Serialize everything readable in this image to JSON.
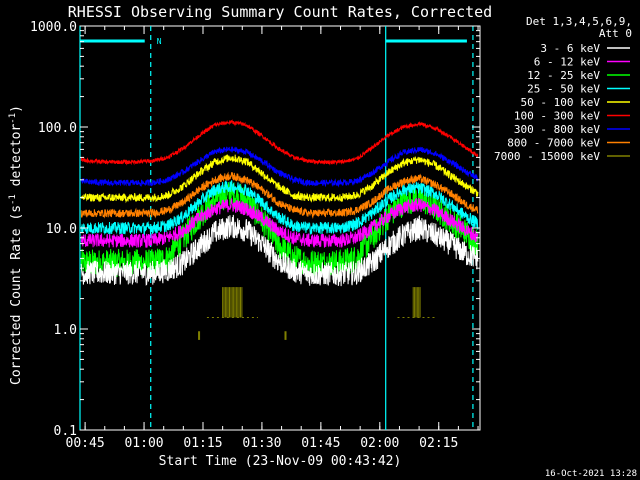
{
  "chart_data": {
    "type": "line",
    "title": "RHESSI Observing Summary Count Rates, Corrected",
    "xlabel": "Start Time (23-Nov-09 00:43:42)",
    "ylabel_main": "Corrected Count Rate (s",
    "ylabel_sup1": "-1",
    "ylabel_mid": " detector",
    "ylabel_sup2": "-1",
    "ylabel_end": ")",
    "ylim": [
      0.1,
      1000
    ],
    "yscale": "log",
    "y_ticks": [
      {
        "v": 0.1,
        "label": "0.1"
      },
      {
        "v": 1,
        "label": "1.0"
      },
      {
        "v": 10,
        "label": "10.0"
      },
      {
        "v": 100,
        "label": "100.0"
      },
      {
        "v": 1000,
        "label": "1000.0"
      }
    ],
    "xlim_minutes": [
      43.7,
      145.5
    ],
    "x_ticks": [
      {
        "m": 45,
        "label": "00:45"
      },
      {
        "m": 60,
        "label": "01:00"
      },
      {
        "m": 75,
        "label": "01:15"
      },
      {
        "m": 90,
        "label": "01:30"
      },
      {
        "m": 105,
        "label": "01:45"
      },
      {
        "m": 120,
        "label": "02:00"
      },
      {
        "m": 135,
        "label": "02:15"
      }
    ],
    "legend_header": [
      "Det 1,3,4,5,6,9,",
      "Att 0"
    ],
    "legend_position": "right",
    "night_intervals_minutes": [
      [
        43.7,
        61.7
      ],
      [
        121.5,
        143.7
      ]
    ],
    "night_label": "N",
    "bg_color": "#000000",
    "series": [
      {
        "name": "3 - 6 keV",
        "color": "#ffffff",
        "x": [
          44,
          50,
          56,
          62,
          66,
          70,
          74,
          78,
          82,
          86,
          90,
          94,
          98,
          102,
          106,
          110,
          114,
          118,
          122,
          126,
          130,
          134,
          138,
          142,
          145
        ],
        "y": [
          3.6,
          3.6,
          3.6,
          3.6,
          3.8,
          4.5,
          6.5,
          9.0,
          10.5,
          9.5,
          7.0,
          4.8,
          3.8,
          3.5,
          3.5,
          3.5,
          3.6,
          4.5,
          6.5,
          8.5,
          10.0,
          8.5,
          7.0,
          5.5,
          5.0
        ]
      },
      {
        "name": "6 - 12 keV",
        "color": "#ff00ff",
        "x": [
          44,
          50,
          56,
          62,
          66,
          70,
          74,
          78,
          82,
          86,
          90,
          94,
          98,
          102,
          106,
          110,
          114,
          118,
          122,
          126,
          130,
          134,
          138,
          142,
          145
        ],
        "y": [
          7.5,
          7.5,
          7.5,
          7.5,
          8.0,
          9.5,
          12.5,
          15.5,
          17.0,
          15.5,
          12.5,
          9.5,
          8.0,
          7.5,
          7.5,
          7.5,
          8.0,
          10.0,
          13.0,
          16.0,
          17.0,
          15.0,
          12.0,
          9.5,
          8.0
        ]
      },
      {
        "name": "12 - 25 keV",
        "color": "#00ff00",
        "x": [
          44,
          50,
          56,
          62,
          66,
          70,
          74,
          78,
          82,
          86,
          90,
          94,
          98,
          102,
          106,
          110,
          114,
          118,
          122,
          126,
          130,
          134,
          138,
          142,
          145
        ],
        "y": [
          4.5,
          4.5,
          4.5,
          4.5,
          5.0,
          8.0,
          13.0,
          19.0,
          22.0,
          19.0,
          12.0,
          7.0,
          5.0,
          4.5,
          4.5,
          4.5,
          5.0,
          8.0,
          13.0,
          18.0,
          20.0,
          16.0,
          12.0,
          9.0,
          7.0
        ]
      },
      {
        "name": "25 - 50 keV",
        "color": "#00ffff",
        "x": [
          44,
          50,
          56,
          62,
          66,
          70,
          74,
          78,
          82,
          86,
          90,
          94,
          98,
          102,
          106,
          110,
          114,
          118,
          122,
          126,
          130,
          134,
          138,
          142,
          145
        ],
        "y": [
          10.0,
          10.0,
          10.0,
          10.0,
          10.5,
          13.0,
          18.0,
          24.0,
          26.0,
          24.0,
          18.0,
          13.0,
          10.5,
          10.0,
          10.0,
          10.0,
          11.0,
          14.0,
          19.0,
          24.0,
          25.0,
          22.0,
          17.0,
          13.0,
          11.0
        ]
      },
      {
        "name": "50 - 100 keV",
        "color": "#ffff00",
        "x": [
          44,
          50,
          56,
          62,
          66,
          70,
          74,
          78,
          82,
          86,
          90,
          94,
          98,
          102,
          106,
          110,
          114,
          118,
          122,
          126,
          130,
          134,
          138,
          142,
          145
        ],
        "y": [
          20.0,
          20.0,
          20.0,
          20.0,
          21.0,
          26.0,
          35.0,
          45.0,
          50.0,
          46.0,
          35.0,
          26.0,
          21.0,
          20.0,
          20.0,
          20.0,
          21.0,
          26.0,
          35.0,
          44.0,
          48.0,
          42.0,
          33.0,
          26.0,
          22.0
        ]
      },
      {
        "name": "100 - 300 keV",
        "color": "#ff0000",
        "x": [
          44,
          50,
          56,
          62,
          66,
          70,
          74,
          78,
          82,
          86,
          90,
          94,
          98,
          102,
          106,
          110,
          114,
          118,
          122,
          126,
          130,
          134,
          138,
          142,
          145
        ],
        "y": [
          47,
          45,
          45,
          46,
          50,
          62,
          82,
          105,
          112,
          105,
          82,
          62,
          50,
          46,
          45,
          45,
          48,
          62,
          82,
          100,
          108,
          98,
          80,
          62,
          52
        ]
      },
      {
        "name": "300 - 800 keV",
        "color": "#0000ff",
        "x": [
          44,
          50,
          56,
          62,
          66,
          70,
          74,
          78,
          82,
          86,
          90,
          94,
          98,
          102,
          106,
          110,
          114,
          118,
          122,
          126,
          130,
          134,
          138,
          142,
          145
        ],
        "y": [
          29,
          28,
          28,
          28,
          30,
          36,
          46,
          57,
          60,
          57,
          46,
          36,
          30,
          28,
          28,
          28,
          29,
          35,
          45,
          56,
          60,
          55,
          45,
          36,
          31
        ]
      },
      {
        "name": "800 - 7000 keV",
        "color": "#ff8000",
        "x": [
          44,
          50,
          56,
          62,
          66,
          70,
          74,
          78,
          82,
          86,
          90,
          94,
          98,
          102,
          106,
          110,
          114,
          118,
          122,
          126,
          130,
          134,
          138,
          142,
          145
        ],
        "y": [
          14,
          14,
          14,
          14,
          15,
          18,
          24,
          30,
          33,
          30,
          24,
          18,
          15,
          14,
          14,
          14,
          15,
          18,
          24,
          29,
          31,
          27,
          22,
          17,
          15
        ]
      },
      {
        "name": "7000 - 15000 keV",
        "color": "#808000",
        "x": [],
        "y": []
      }
    ],
    "extra_marks": {
      "olive_spikes_minutes": [
        [
          80,
          85
        ]
      ],
      "olive_spikes_2_minutes": [
        [
          128.5,
          130.5
        ]
      ],
      "olive_low_markers_minutes": [
        74,
        96
      ]
    }
  },
  "footer": {
    "datestamp": "16-Oct-2021 13:28"
  }
}
